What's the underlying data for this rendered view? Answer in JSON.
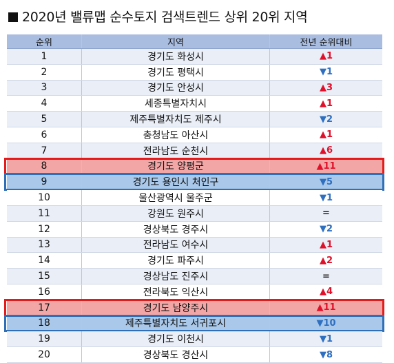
{
  "title": "2020년 밸류맵 순수토지 검색트렌드 상위 20위 지역",
  "table": {
    "headers": [
      "순위",
      "지역",
      "전년 순위대비"
    ],
    "rows": [
      {
        "rank": "1",
        "region": "경기도 화성시",
        "change": "▲1",
        "dir": "up"
      },
      {
        "rank": "2",
        "region": "경기도 평택시",
        "change": "▼1",
        "dir": "down"
      },
      {
        "rank": "3",
        "region": "경기도 안성시",
        "change": "▲3",
        "dir": "up"
      },
      {
        "rank": "4",
        "region": "세종특별자치시",
        "change": "▲1",
        "dir": "up"
      },
      {
        "rank": "5",
        "region": "제주특별자치도 제주시",
        "change": "▼2",
        "dir": "down"
      },
      {
        "rank": "6",
        "region": "충청남도 아산시",
        "change": "▲1",
        "dir": "up"
      },
      {
        "rank": "7",
        "region": "전라남도 순천시",
        "change": "▲6",
        "dir": "up"
      },
      {
        "rank": "8",
        "region": "경기도 양평군",
        "change": "▲11",
        "dir": "up",
        "highlight": "red"
      },
      {
        "rank": "9",
        "region": "경기도 용인시 처인구",
        "change": "▼5",
        "dir": "down",
        "highlight": "blue"
      },
      {
        "rank": "10",
        "region": "울산광역시 울주군",
        "change": "▼1",
        "dir": "down"
      },
      {
        "rank": "11",
        "region": "강원도 원주시",
        "change": "=",
        "dir": "same"
      },
      {
        "rank": "12",
        "region": "경상북도 경주시",
        "change": "▼2",
        "dir": "down"
      },
      {
        "rank": "13",
        "region": "전라남도 여수시",
        "change": "▲1",
        "dir": "up"
      },
      {
        "rank": "14",
        "region": "경기도 파주시",
        "change": "▲2",
        "dir": "up"
      },
      {
        "rank": "15",
        "region": "경상남도 진주시",
        "change": "=",
        "dir": "same"
      },
      {
        "rank": "16",
        "region": "전라북도 익산시",
        "change": "▲4",
        "dir": "up"
      },
      {
        "rank": "17",
        "region": "경기도 남양주시",
        "change": "▲11",
        "dir": "up",
        "highlight": "red"
      },
      {
        "rank": "18",
        "region": "제주특별자치도 서귀포시",
        "change": "▼10",
        "dir": "down",
        "highlight": "blue"
      },
      {
        "rank": "19",
        "region": "경기도 이천시",
        "change": "▼1",
        "dir": "down"
      },
      {
        "rank": "20",
        "region": "경상북도 경산시",
        "change": "▼8",
        "dir": "down"
      }
    ]
  },
  "colors": {
    "up": "#e0102a",
    "down": "#2f6fc0",
    "highlight_red": "#e31b1b",
    "highlight_blue": "#2f6fb7",
    "header_bg": "#a9bde0"
  }
}
